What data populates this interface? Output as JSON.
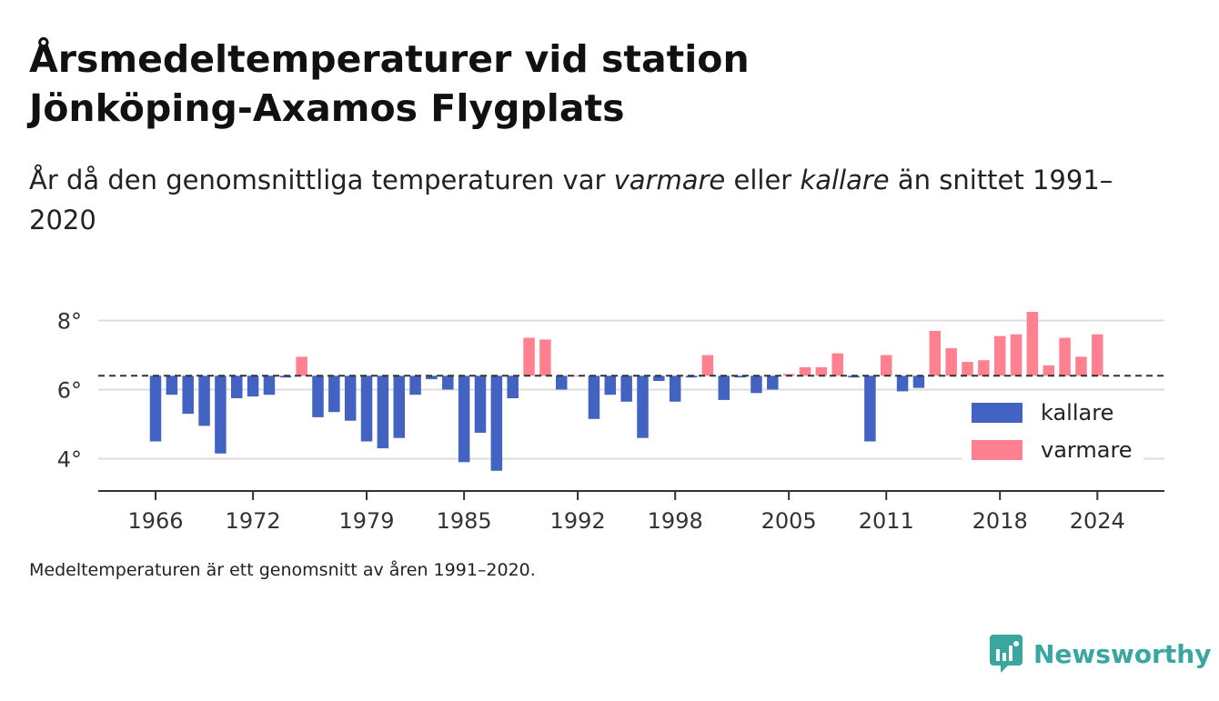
{
  "header": {
    "title_line1": "Årsmedeltemperaturer vid station",
    "title_line2": "Jönköping-Axamos Flygplats",
    "subtitle_part1": "År då den genomsnittliga temperaturen var ",
    "subtitle_em1": "varmare",
    "subtitle_part2": " eller ",
    "subtitle_em2": "kallare",
    "subtitle_part3": " än snittet 1991–2020"
  },
  "footnote": "Medeltemperaturen är ett genomsnitt av åren 1991–2020.",
  "brand": {
    "name": "Newsworthy",
    "icon": "bar-chart-bubble-icon"
  },
  "chart_data": {
    "type": "bar",
    "baseline": 6.4,
    "ylim": [
      3.2,
      8.6
    ],
    "y_ticks": [
      {
        "value": 4,
        "label": "4°"
      },
      {
        "value": 6,
        "label": "6°"
      },
      {
        "value": 8,
        "label": "8°"
      }
    ],
    "x_ticks": [
      1966,
      1972,
      1979,
      1985,
      1992,
      1998,
      2005,
      2011,
      2018,
      2024
    ],
    "grid": true,
    "legend_position": "bottom-right",
    "colors": {
      "kallare": "#4263c2",
      "varmare": "#ff8090",
      "baseline": "#333333",
      "grid": "#dddddd",
      "axis": "#333333"
    },
    "series": [
      {
        "name": "kallare",
        "legend_label": "kallare"
      },
      {
        "name": "varmare",
        "legend_label": "varmare"
      }
    ],
    "x": [
      1966,
      1967,
      1968,
      1969,
      1970,
      1971,
      1972,
      1973,
      1974,
      1975,
      1976,
      1977,
      1978,
      1979,
      1980,
      1981,
      1982,
      1983,
      1984,
      1985,
      1986,
      1987,
      1988,
      1989,
      1990,
      1991,
      1992,
      1993,
      1994,
      1995,
      1996,
      1997,
      1998,
      1999,
      2000,
      2001,
      2002,
      2003,
      2004,
      2005,
      2006,
      2007,
      2008,
      2009,
      2010,
      2011,
      2012,
      2013,
      2014,
      2015,
      2016,
      2017,
      2018,
      2019,
      2020,
      2021,
      2022,
      2023,
      2024
    ],
    "values": [
      4.5,
      5.85,
      5.3,
      4.95,
      4.15,
      5.75,
      5.8,
      5.85,
      6.35,
      6.95,
      5.2,
      5.35,
      5.1,
      4.5,
      4.3,
      4.6,
      5.85,
      6.3,
      6.0,
      3.9,
      4.75,
      3.65,
      5.75,
      7.5,
      7.45,
      6.0,
      6.4,
      5.15,
      5.85,
      5.65,
      4.6,
      6.25,
      5.65,
      6.35,
      7.0,
      5.7,
      6.35,
      5.9,
      6.0,
      6.45,
      6.65,
      6.65,
      7.05,
      6.35,
      4.5,
      7.0,
      5.95,
      6.05,
      7.7,
      7.2,
      6.8,
      6.85,
      7.55,
      7.6,
      8.25,
      6.7,
      7.5,
      6.95,
      7.6
    ]
  }
}
